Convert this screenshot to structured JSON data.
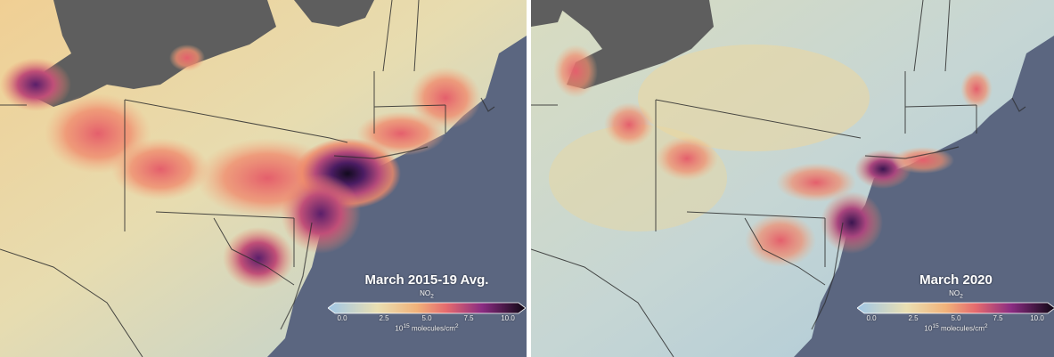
{
  "panels": [
    {
      "title": "March 2015-19 Avg.",
      "variable": "NO",
      "variable_subscript": "2",
      "ticks": [
        "0.0",
        "2.5",
        "5.0",
        "7.5",
        "10.0"
      ],
      "units_prefix": "10",
      "units_exponent": "15",
      "units_suffix": " molecules/cm",
      "units_suffix_exponent": "2"
    },
    {
      "title": "March 2020",
      "variable": "NO",
      "variable_subscript": "2",
      "ticks": [
        "0.0",
        "2.5",
        "5.0",
        "7.5",
        "10.0"
      ],
      "units_prefix": "10",
      "units_exponent": "15",
      "units_suffix": " molecules/cm",
      "units_suffix_exponent": "2"
    }
  ],
  "colors": {
    "ocean": "#5b6680",
    "land_gray": "#5e5e5e",
    "low": "#b9d3dd",
    "mid": "#ecd9a2",
    "high": "#ef8a6a",
    "very_high": "#3b1150"
  }
}
